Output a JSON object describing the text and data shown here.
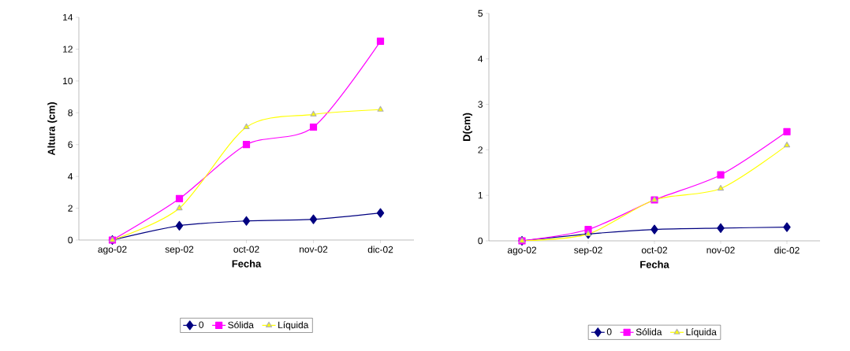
{
  "chart_data": [
    {
      "type": "line",
      "xlabel": "Fecha",
      "ylabel": "Altura (cm)",
      "categories": [
        "ago-02",
        "sep-02",
        "oct-02",
        "nov-02",
        "dic-02"
      ],
      "ylim": [
        0,
        14
      ],
      "yticks": [
        0,
        2,
        4,
        6,
        8,
        10,
        12,
        14
      ],
      "legend": "bottom",
      "line_style": "solid",
      "series": [
        {
          "name": "0",
          "color": "#000080",
          "marker": "diamond",
          "values": [
            0,
            0.9,
            1.2,
            1.3,
            1.7
          ]
        },
        {
          "name": "Sólida",
          "color": "#ff00ff",
          "marker": "square",
          "values": [
            0,
            2.6,
            6.0,
            7.1,
            12.5
          ]
        },
        {
          "name": "Líquida",
          "color": "#ffff00",
          "marker": "triangle",
          "values": [
            0,
            2.0,
            7.1,
            7.9,
            8.2
          ]
        }
      ]
    },
    {
      "type": "line",
      "xlabel": "Fecha",
      "ylabel": "D(cm)",
      "categories": [
        "ago-02",
        "sep-02",
        "oct-02",
        "nov-02",
        "dic-02"
      ],
      "ylim": [
        0,
        5
      ],
      "yticks": [
        0,
        1,
        2,
        3,
        4,
        5
      ],
      "legend": "bottom",
      "line_style": "solid",
      "series": [
        {
          "name": "0",
          "color": "#000080",
          "marker": "diamond",
          "values": [
            0,
            0.15,
            0.25,
            0.28,
            0.3
          ]
        },
        {
          "name": "Sólida",
          "color": "#ff00ff",
          "marker": "square",
          "values": [
            0,
            0.25,
            0.9,
            1.45,
            2.4
          ]
        },
        {
          "name": "Líquida",
          "color": "#ffff00",
          "marker": "triangle",
          "values": [
            0,
            0.15,
            0.9,
            1.15,
            2.1
          ]
        }
      ]
    }
  ]
}
